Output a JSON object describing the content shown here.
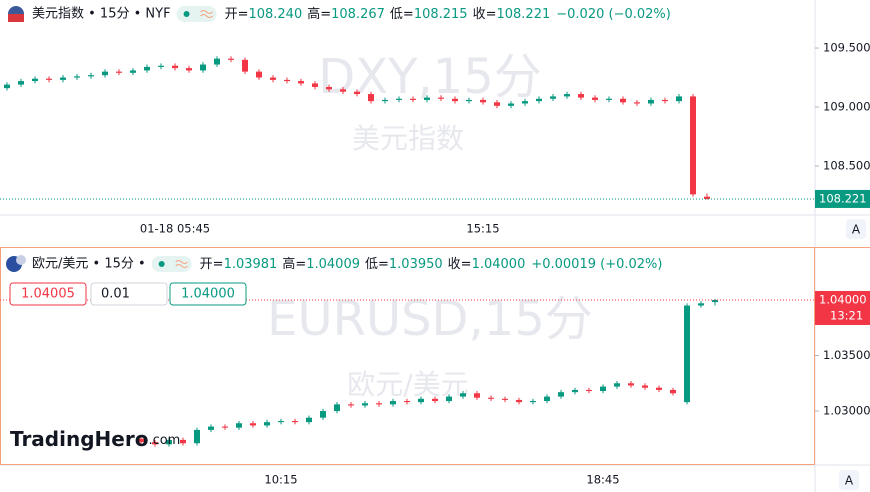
{
  "chart_data": [
    {
      "type": "candlestick",
      "title": "美元指数 • 15分 • NYF",
      "watermark": "DXY,15分",
      "watermark_subtitle": "美元指数",
      "header_stats": [
        {
          "label": "开=",
          "value": "108.240"
        },
        {
          "label": "高=",
          "value": "108.267"
        },
        {
          "label": "低=",
          "value": "108.215"
        },
        {
          "label": "收=",
          "value": "108.221"
        }
      ],
      "change": "−0.020 (−0.02%)",
      "categories": [
        null,
        null,
        null,
        null,
        null,
        null,
        null,
        null,
        null,
        null,
        null,
        null,
        "01-18 05:45",
        null,
        null,
        null,
        null,
        null,
        null,
        null,
        null,
        null,
        null,
        null,
        null,
        null,
        null,
        null,
        null,
        null,
        null,
        null,
        null,
        null,
        "15:15",
        null,
        null,
        null,
        null,
        null,
        null,
        null,
        null,
        null,
        null,
        null,
        null,
        null,
        null,
        null,
        null
      ],
      "open": [
        109.16,
        109.19,
        109.22,
        109.24,
        109.23,
        109.25,
        109.26,
        109.27,
        109.3,
        109.29,
        109.31,
        109.34,
        109.35,
        109.33,
        109.31,
        109.36,
        109.41,
        109.4,
        109.3,
        109.25,
        109.23,
        109.22,
        109.2,
        109.17,
        109.15,
        109.13,
        109.11,
        109.05,
        109.06,
        109.07,
        109.06,
        109.08,
        109.07,
        109.05,
        109.06,
        109.04,
        109.01,
        109.03,
        109.05,
        109.07,
        109.09,
        109.11,
        109.08,
        109.06,
        109.07,
        109.04,
        109.03,
        109.06,
        109.05,
        109.09,
        108.24
      ],
      "high": [
        109.21,
        109.24,
        109.26,
        109.26,
        109.27,
        109.28,
        109.29,
        109.32,
        109.32,
        109.33,
        109.36,
        109.37,
        109.37,
        109.35,
        109.38,
        109.43,
        109.43,
        109.42,
        109.32,
        109.27,
        109.25,
        109.24,
        109.22,
        109.19,
        109.17,
        109.15,
        109.13,
        109.08,
        109.09,
        109.09,
        109.1,
        109.1,
        109.09,
        109.08,
        109.08,
        109.06,
        109.05,
        109.07,
        109.09,
        109.11,
        109.13,
        109.13,
        109.1,
        109.09,
        109.09,
        109.06,
        109.08,
        109.08,
        109.11,
        109.11,
        108.267
      ],
      "low": [
        109.14,
        109.17,
        109.2,
        109.21,
        109.21,
        109.23,
        109.24,
        109.25,
        109.27,
        109.27,
        109.29,
        109.32,
        109.31,
        109.29,
        109.29,
        109.34,
        109.38,
        109.28,
        109.23,
        109.21,
        109.2,
        109.18,
        109.15,
        109.13,
        109.11,
        109.09,
        109.03,
        109.03,
        109.04,
        109.04,
        109.04,
        109.05,
        109.03,
        109.03,
        109.02,
        108.99,
        108.99,
        109.01,
        109.03,
        109.05,
        109.07,
        109.06,
        109.04,
        109.04,
        109.02,
        109.01,
        109.01,
        109.03,
        109.03,
        108.24,
        108.215
      ],
      "close": [
        109.19,
        109.22,
        109.24,
        109.23,
        109.25,
        109.26,
        109.27,
        109.3,
        109.29,
        109.31,
        109.34,
        109.35,
        109.33,
        109.31,
        109.36,
        109.41,
        109.4,
        109.3,
        109.25,
        109.23,
        109.22,
        109.2,
        109.17,
        109.15,
        109.13,
        109.11,
        109.05,
        109.06,
        109.07,
        109.06,
        109.08,
        109.07,
        109.05,
        109.06,
        109.04,
        109.01,
        109.03,
        109.05,
        109.07,
        109.09,
        109.11,
        109.08,
        109.06,
        109.07,
        109.04,
        109.03,
        109.06,
        109.05,
        109.09,
        108.26,
        108.221
      ],
      "ylim": [
        108.085,
        109.907
      ],
      "yticks": [
        {
          "value": 108.5,
          "label": "108.500"
        },
        {
          "value": 109,
          "label": "109.000"
        },
        {
          "value": 109.5,
          "label": "109.500"
        }
      ],
      "up_color": "#089981",
      "down_color": "#f23645",
      "price_line_color": "#089981"
    },
    {
      "type": "candlestick",
      "title": "欧元/美元 • 15分 •",
      "watermark": "EURUSD,15分",
      "watermark_subtitle": "欧元/美元",
      "header_stats": [
        {
          "label": "开=",
          "value": "1.03981"
        },
        {
          "label": "高=",
          "value": "1.04009"
        },
        {
          "label": "低=",
          "value": "1.03950"
        },
        {
          "label": "收=",
          "value": "1.04000"
        }
      ],
      "change": "+0.00019 (+0.02%)",
      "order_inputs": [
        "1.04005",
        "0.01",
        "1.04000"
      ],
      "price_label": "1.04000",
      "countdown": "13:21",
      "logo": "TradingHero",
      "logo_suffix": ".com",
      "categories": [
        null,
        null,
        null,
        null,
        null,
        null,
        null,
        null,
        null,
        null,
        "10:15",
        null,
        null,
        null,
        null,
        null,
        null,
        null,
        null,
        null,
        null,
        null,
        null,
        null,
        null,
        null,
        null,
        null,
        null,
        null,
        null,
        null,
        null,
        "18:45",
        null,
        null,
        null,
        null,
        null,
        null,
        null,
        null
      ],
      "open": [
        1.0275,
        1.0272,
        1.027,
        1.0274,
        1.0271,
        1.0283,
        1.0286,
        1.0285,
        1.0289,
        1.0287,
        1.029,
        1.0291,
        1.029,
        1.0294,
        1.03,
        1.0306,
        1.0305,
        1.0307,
        1.0306,
        1.0309,
        1.0308,
        1.0311,
        1.0309,
        1.0313,
        1.0316,
        1.0312,
        1.0311,
        1.031,
        1.0308,
        1.0309,
        1.0313,
        1.0317,
        1.0319,
        1.0318,
        1.0322,
        1.0325,
        1.0323,
        1.0321,
        1.0319,
        1.0308,
        1.0395,
        1.03981
      ],
      "high": [
        1.0277,
        1.0274,
        1.0276,
        1.0276,
        1.0285,
        1.0288,
        1.0288,
        1.0291,
        1.0291,
        1.0292,
        1.0293,
        1.0293,
        1.0296,
        1.0302,
        1.0308,
        1.0308,
        1.0309,
        1.0309,
        1.0311,
        1.0311,
        1.0313,
        1.0313,
        1.0315,
        1.0318,
        1.0318,
        1.0314,
        1.0313,
        1.0312,
        1.0311,
        1.0315,
        1.0319,
        1.0321,
        1.0321,
        1.0324,
        1.0327,
        1.0327,
        1.0325,
        1.0323,
        1.0321,
        1.0397,
        1.0399,
        1.04009
      ],
      "low": [
        1.027,
        1.0268,
        1.0268,
        1.0269,
        1.0269,
        1.0281,
        1.0283,
        1.0283,
        1.0285,
        1.0285,
        1.0288,
        1.0288,
        1.0288,
        1.0292,
        1.0298,
        1.0303,
        1.0303,
        1.0304,
        1.0304,
        1.0306,
        1.0306,
        1.0307,
        1.0307,
        1.0311,
        1.031,
        1.0309,
        1.0308,
        1.0306,
        1.0306,
        1.0307,
        1.0311,
        1.0315,
        1.0316,
        1.0316,
        1.032,
        1.0321,
        1.0319,
        1.0317,
        1.0314,
        1.0306,
        1.0393,
        1.0395
      ],
      "close": [
        1.0272,
        1.027,
        1.0274,
        1.0271,
        1.0283,
        1.0286,
        1.0285,
        1.0289,
        1.0287,
        1.029,
        1.0291,
        1.029,
        1.0294,
        1.03,
        1.0306,
        1.0305,
        1.0307,
        1.0306,
        1.0309,
        1.0308,
        1.0311,
        1.0309,
        1.0313,
        1.0316,
        1.0312,
        1.0311,
        1.031,
        1.0308,
        1.0309,
        1.0313,
        1.0317,
        1.0319,
        1.0318,
        1.0322,
        1.0325,
        1.0323,
        1.0321,
        1.0319,
        1.0316,
        1.0395,
        1.0397,
        1.04
      ],
      "ylim": [
        1.02514,
        1.0445
      ],
      "yticks": [
        {
          "value": 1.03,
          "label": "1.03000"
        },
        {
          "value": 1.035,
          "label": "1.03500"
        }
      ],
      "up_color": "#089981",
      "down_color": "#f23645",
      "price_line_color": "#f23645"
    }
  ]
}
